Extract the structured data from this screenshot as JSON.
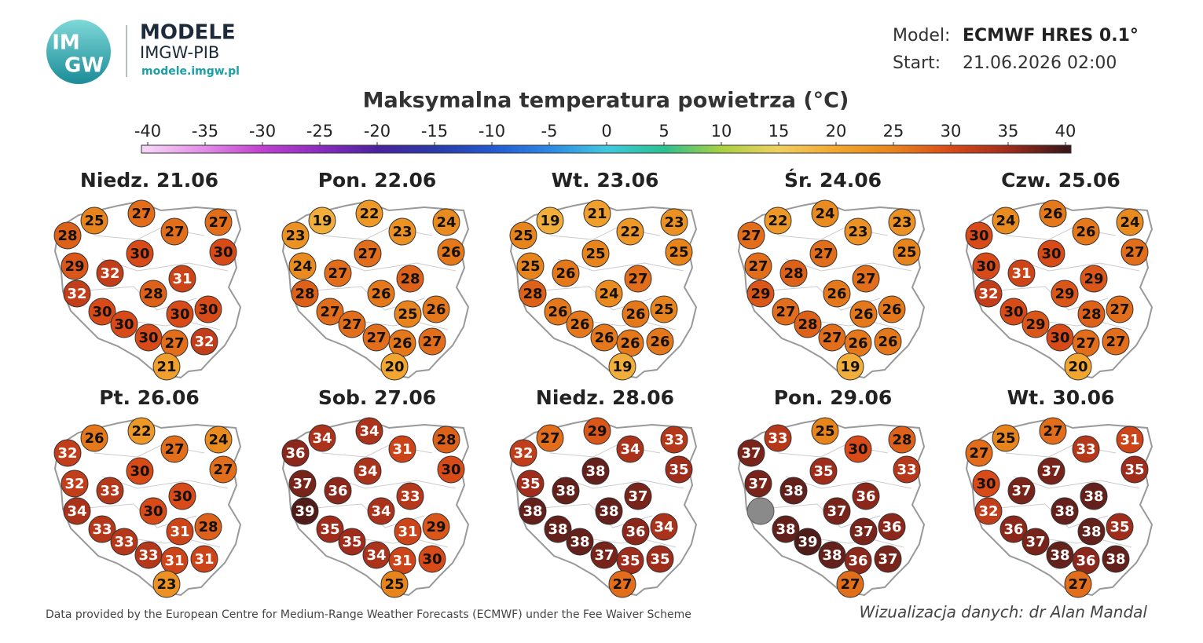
{
  "header": {
    "logo": [
      "IM",
      "GW"
    ],
    "brand": "MODELE",
    "org": "IMGW-PIB",
    "url": "modele.imgw.pl"
  },
  "model": {
    "model_label": "Model:",
    "model": "ECMWF HRES 0.1°",
    "start_label": "Start:",
    "start": "21.06.2026 02:00"
  },
  "chart_data": {
    "type": "map",
    "title": "Maksymalna temperatura powietrza (°C)",
    "colorbar": {
      "ticks": [
        -40,
        -35,
        -30,
        -25,
        -20,
        -15,
        -10,
        -5,
        0,
        5,
        10,
        15,
        20,
        25,
        30,
        35,
        40
      ],
      "colors": [
        "#f6d2f6",
        "#e28ae6",
        "#c040d0",
        "#8a2cc0",
        "#4a22a0",
        "#2a3aa8",
        "#2458d0",
        "#2c88e4",
        "#40c8e0",
        "#2cc090",
        "#a8d040",
        "#f0d060",
        "#f2a630",
        "#e8841c",
        "#d84a18",
        "#a02c1c",
        "#3c1818"
      ]
    },
    "panels": [
      {
        "label": "Niedz. 21.06",
        "values": [
          25,
          27,
          28,
          27,
          27,
          30,
          30,
          29,
          32,
          31,
          32,
          28,
          30,
          30,
          30,
          30,
          30,
          27,
          32,
          21
        ]
      },
      {
        "label": "Pon. 22.06",
        "values": [
          19,
          22,
          23,
          23,
          24,
          27,
          26,
          24,
          27,
          28,
          28,
          26,
          27,
          26,
          25,
          27,
          27,
          26,
          27,
          20
        ]
      },
      {
        "label": "Wt. 23.06",
        "values": [
          19,
          21,
          25,
          22,
          23,
          25,
          25,
          25,
          26,
          27,
          28,
          24,
          26,
          25,
          26,
          26,
          26,
          26,
          26,
          19
        ]
      },
      {
        "label": "Śr. 24.06",
        "values": [
          22,
          24,
          27,
          23,
          23,
          27,
          25,
          27,
          28,
          27,
          29,
          26,
          27,
          26,
          26,
          28,
          27,
          26,
          26,
          19
        ]
      },
      {
        "label": "Czw. 25.06",
        "values": [
          24,
          26,
          30,
          26,
          24,
          30,
          27,
          30,
          31,
          29,
          32,
          29,
          30,
          27,
          28,
          29,
          30,
          27,
          27,
          20
        ]
      },
      {
        "label": "Pt. 26.06",
        "values": [
          26,
          22,
          32,
          27,
          24,
          30,
          27,
          32,
          33,
          30,
          34,
          30,
          33,
          28,
          31,
          33,
          33,
          31,
          31,
          23
        ]
      },
      {
        "label": "Sob. 27.06",
        "values": [
          34,
          34,
          36,
          31,
          28,
          34,
          30,
          37,
          36,
          33,
          39,
          34,
          35,
          29,
          31,
          35,
          34,
          31,
          30,
          25
        ]
      },
      {
        "label": "Niedz. 28.06",
        "values": [
          27,
          29,
          32,
          34,
          33,
          38,
          35,
          35,
          38,
          37,
          38,
          38,
          38,
          34,
          36,
          38,
          37,
          35,
          35,
          27
        ]
      },
      {
        "label": "Pon. 29.06",
        "values": [
          33,
          25,
          37,
          30,
          28,
          35,
          33,
          37,
          38,
          36,
          null,
          37,
          38,
          36,
          37,
          39,
          38,
          36,
          37,
          27
        ]
      },
      {
        "label": "Wt. 30.06",
        "values": [
          25,
          27,
          27,
          33,
          31,
          37,
          35,
          30,
          37,
          38,
          32,
          38,
          36,
          35,
          38,
          37,
          38,
          36,
          38,
          27
        ]
      }
    ]
  },
  "footer": {
    "source": "Data provided by the European Centre for Medium-Range Weather Forecasts (ECMWF) under the Fee Waiver Scheme",
    "credit": "Wizualizacja danych: dr Alan Mandal"
  }
}
